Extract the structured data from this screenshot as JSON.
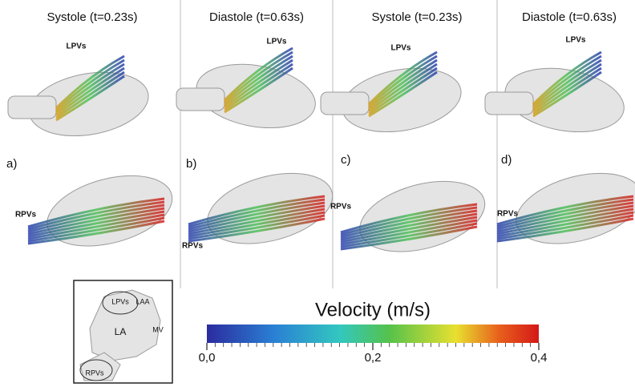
{
  "panels": [
    {
      "title": "Systole (t=0.23s)",
      "label": "a)",
      "top_label": "LPVs",
      "bottom_label": "RPVs"
    },
    {
      "title": "Diastole (t=0.63s)",
      "label": "b)",
      "top_label": "LPVs",
      "bottom_label": "RPVs"
    },
    {
      "title": "Systole (t=0.23s)",
      "label": "c)",
      "top_label": "LPVs",
      "bottom_label": "RPVs"
    },
    {
      "title": "Diastole (t=0.63s)",
      "label": "d)",
      "top_label": "LPVs",
      "bottom_label": "RPVs"
    }
  ],
  "inset": {
    "labels": [
      "LPVs",
      "LAA",
      "LA",
      "MV",
      "RPVs"
    ]
  },
  "colorbar": {
    "title": "Velocity (m/s)",
    "range": [
      0,
      0.4
    ],
    "ticks": [
      {
        "value": 0,
        "label": "0,0"
      },
      {
        "value": 0.2,
        "label": "0,2"
      },
      {
        "value": 0.4,
        "label": "0,4"
      }
    ]
  }
}
